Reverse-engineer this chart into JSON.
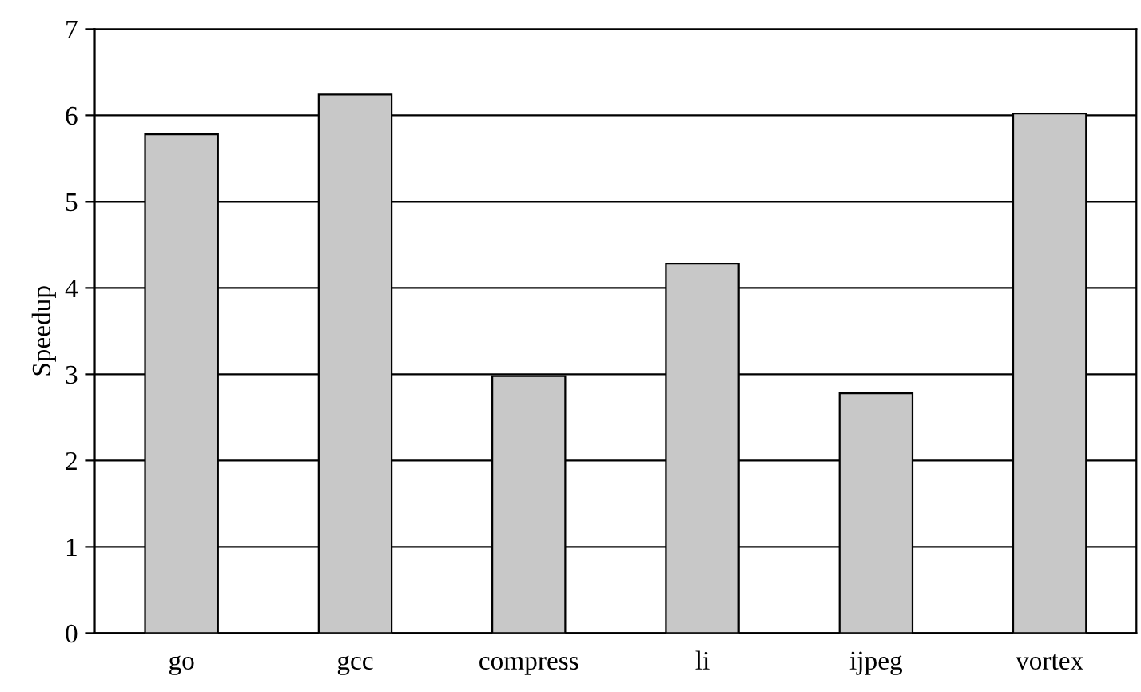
{
  "chart_data": {
    "type": "bar",
    "ylabel": "Speedup",
    "categories": [
      "go",
      "gcc",
      "compress",
      "li",
      "ijpeg",
      "vortex"
    ],
    "values": [
      5.78,
      6.24,
      2.98,
      4.28,
      2.78,
      6.02
    ],
    "color": "#c8c8c8",
    "ylim": [
      0,
      7
    ],
    "yticks": [
      0,
      1,
      2,
      3,
      4,
      5,
      6,
      7
    ],
    "grid": "y",
    "legend": false
  }
}
